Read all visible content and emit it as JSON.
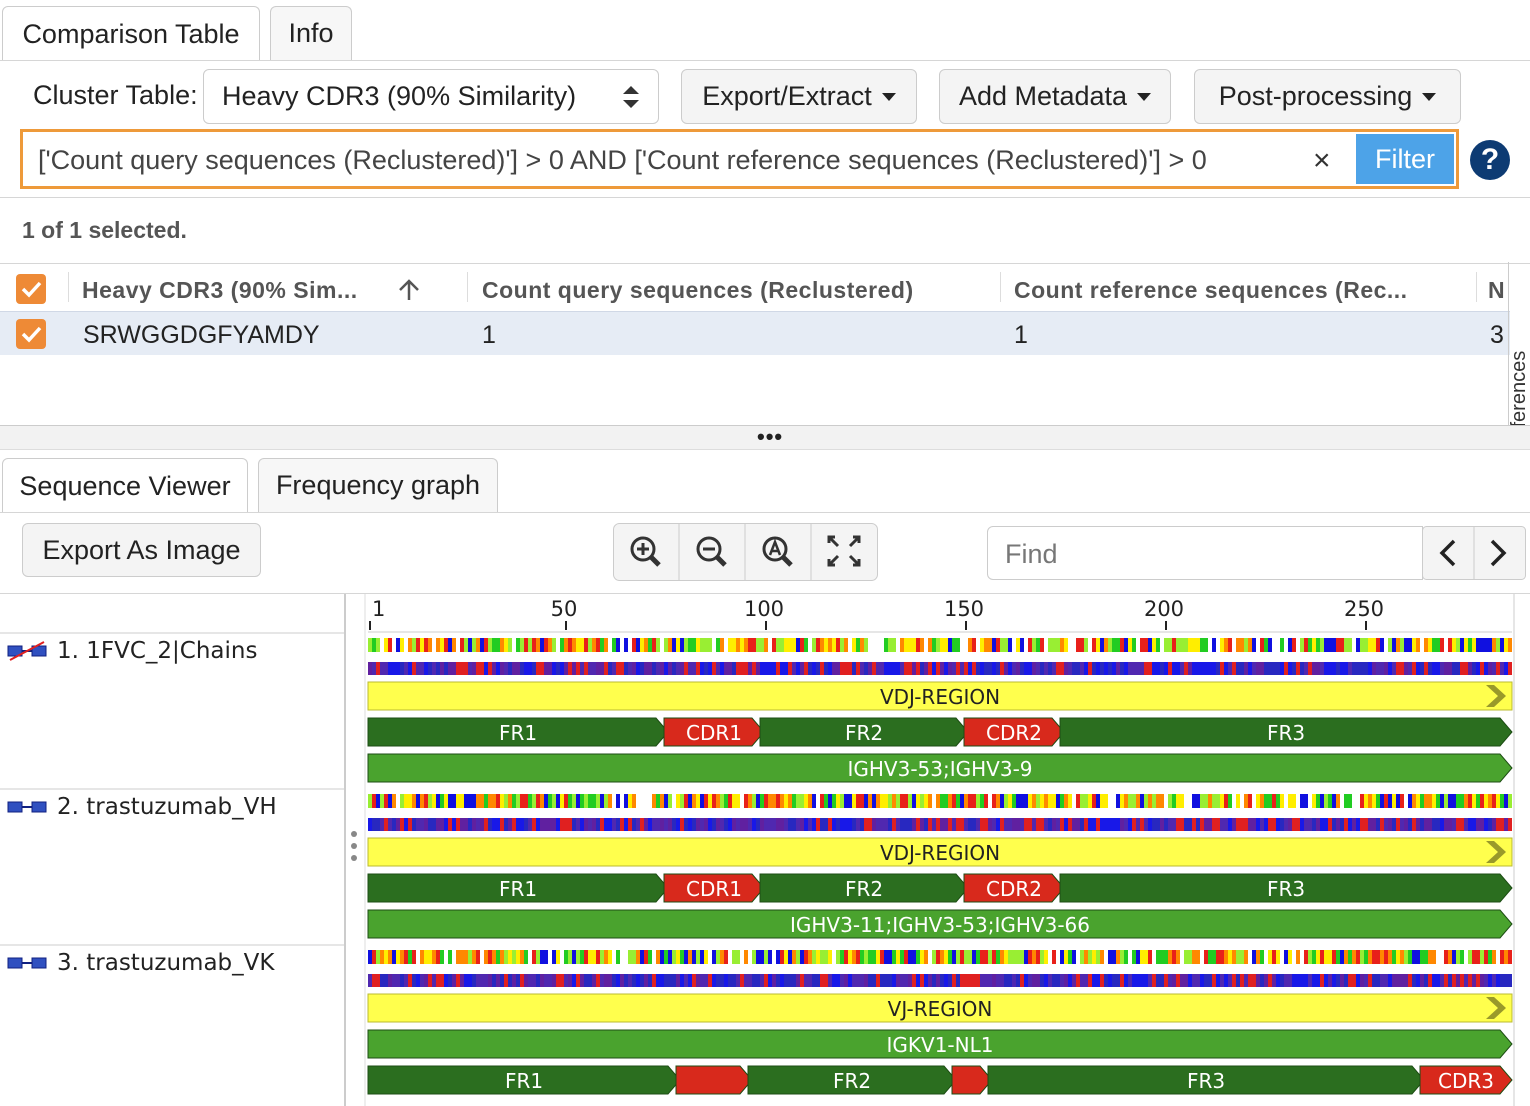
{
  "tabs_top": [
    "Comparison Table",
    "Info"
  ],
  "cluster_label": "Cluster Table:",
  "cluster_select": "Heavy CDR3 (90% Similarity)",
  "menus": [
    "Export/Extract",
    "Add Metadata",
    "Post-processing"
  ],
  "filter": {
    "query": "['Count query sequences (Reclustered)'] > 0 AND ['Count reference sequences (Reclustered)'] > 0",
    "button": "Filter",
    "help": "?"
  },
  "selection_status": "1 of 1 selected.",
  "table": {
    "headers": [
      "Heavy CDR3 (90% Sim...",
      "Count query sequences (Reclustered)",
      "Count reference sequences (Rec...",
      "N"
    ],
    "rows": [
      [
        "SRWGGDGFYAMDY",
        1,
        1,
        3
      ]
    ]
  },
  "side_tab": "Table Preferences",
  "tabs_bottom": [
    "Sequence Viewer",
    "Frequency graph"
  ],
  "export_button": "Export As Image",
  "find_placeholder": "Find",
  "viewer": {
    "range": [
      1,
      286
    ],
    "ticks": [
      1,
      50,
      100,
      150,
      200,
      250
    ],
    "sequences": [
      {
        "name": "1. 1FVC_2|Chains",
        "tracks": [
          [
            {
              "label": "VDJ-REGION",
              "start": 1,
              "end": 286,
              "color": "#ffff4d"
            }
          ],
          [
            {
              "label": "FR1",
              "start": 1,
              "end": 75,
              "color": "#2b6e1f"
            },
            {
              "label": "CDR1",
              "start": 75,
              "end": 99,
              "color": "#d8291c"
            },
            {
              "label": "FR2",
              "start": 99,
              "end": 150,
              "color": "#2b6e1f"
            },
            {
              "label": "CDR2",
              "start": 150,
              "end": 174,
              "color": "#d8291c"
            },
            {
              "label": "FR3",
              "start": 174,
              "end": 286,
              "color": "#2b6e1f"
            }
          ],
          [
            {
              "label": "IGHV3-53;IGHV3-9",
              "start": 1,
              "end": 286,
              "color": "#4aa32e"
            }
          ]
        ]
      },
      {
        "name": "2. trastuzumab_VH",
        "tracks": [
          [
            {
              "label": "VDJ-REGION",
              "start": 1,
              "end": 286,
              "color": "#ffff4d"
            }
          ],
          [
            {
              "label": "FR1",
              "start": 1,
              "end": 75,
              "color": "#2b6e1f"
            },
            {
              "label": "CDR1",
              "start": 75,
              "end": 99,
              "color": "#d8291c"
            },
            {
              "label": "FR2",
              "start": 99,
              "end": 150,
              "color": "#2b6e1f"
            },
            {
              "label": "CDR2",
              "start": 150,
              "end": 174,
              "color": "#d8291c"
            },
            {
              "label": "FR3",
              "start": 174,
              "end": 286,
              "color": "#2b6e1f"
            }
          ],
          [
            {
              "label": "IGHV3-11;IGHV3-53;IGHV3-66",
              "start": 1,
              "end": 286,
              "color": "#4aa32e"
            }
          ]
        ]
      },
      {
        "name": "3. trastuzumab_VK",
        "tracks": [
          [
            {
              "label": "VJ-REGION",
              "start": 1,
              "end": 286,
              "color": "#ffff4d"
            }
          ],
          [
            {
              "label": "IGKV1-NL1",
              "start": 1,
              "end": 286,
              "color": "#4aa32e"
            }
          ],
          [
            {
              "label": "FR1",
              "start": 1,
              "end": 78,
              "color": "#2b6e1f"
            },
            {
              "label": null,
              "start": 78,
              "end": 96,
              "color": "#d8291c"
            },
            {
              "label": "FR2",
              "start": 96,
              "end": 147,
              "color": "#2b6e1f"
            },
            {
              "label": null,
              "start": 147,
              "end": 156,
              "color": "#d8291c"
            },
            {
              "label": "FR3",
              "start": 156,
              "end": 264,
              "color": "#2b6e1f"
            },
            {
              "label": "CDR3",
              "start": 264,
              "end": 286,
              "color": "#d8291c"
            }
          ]
        ]
      }
    ]
  }
}
